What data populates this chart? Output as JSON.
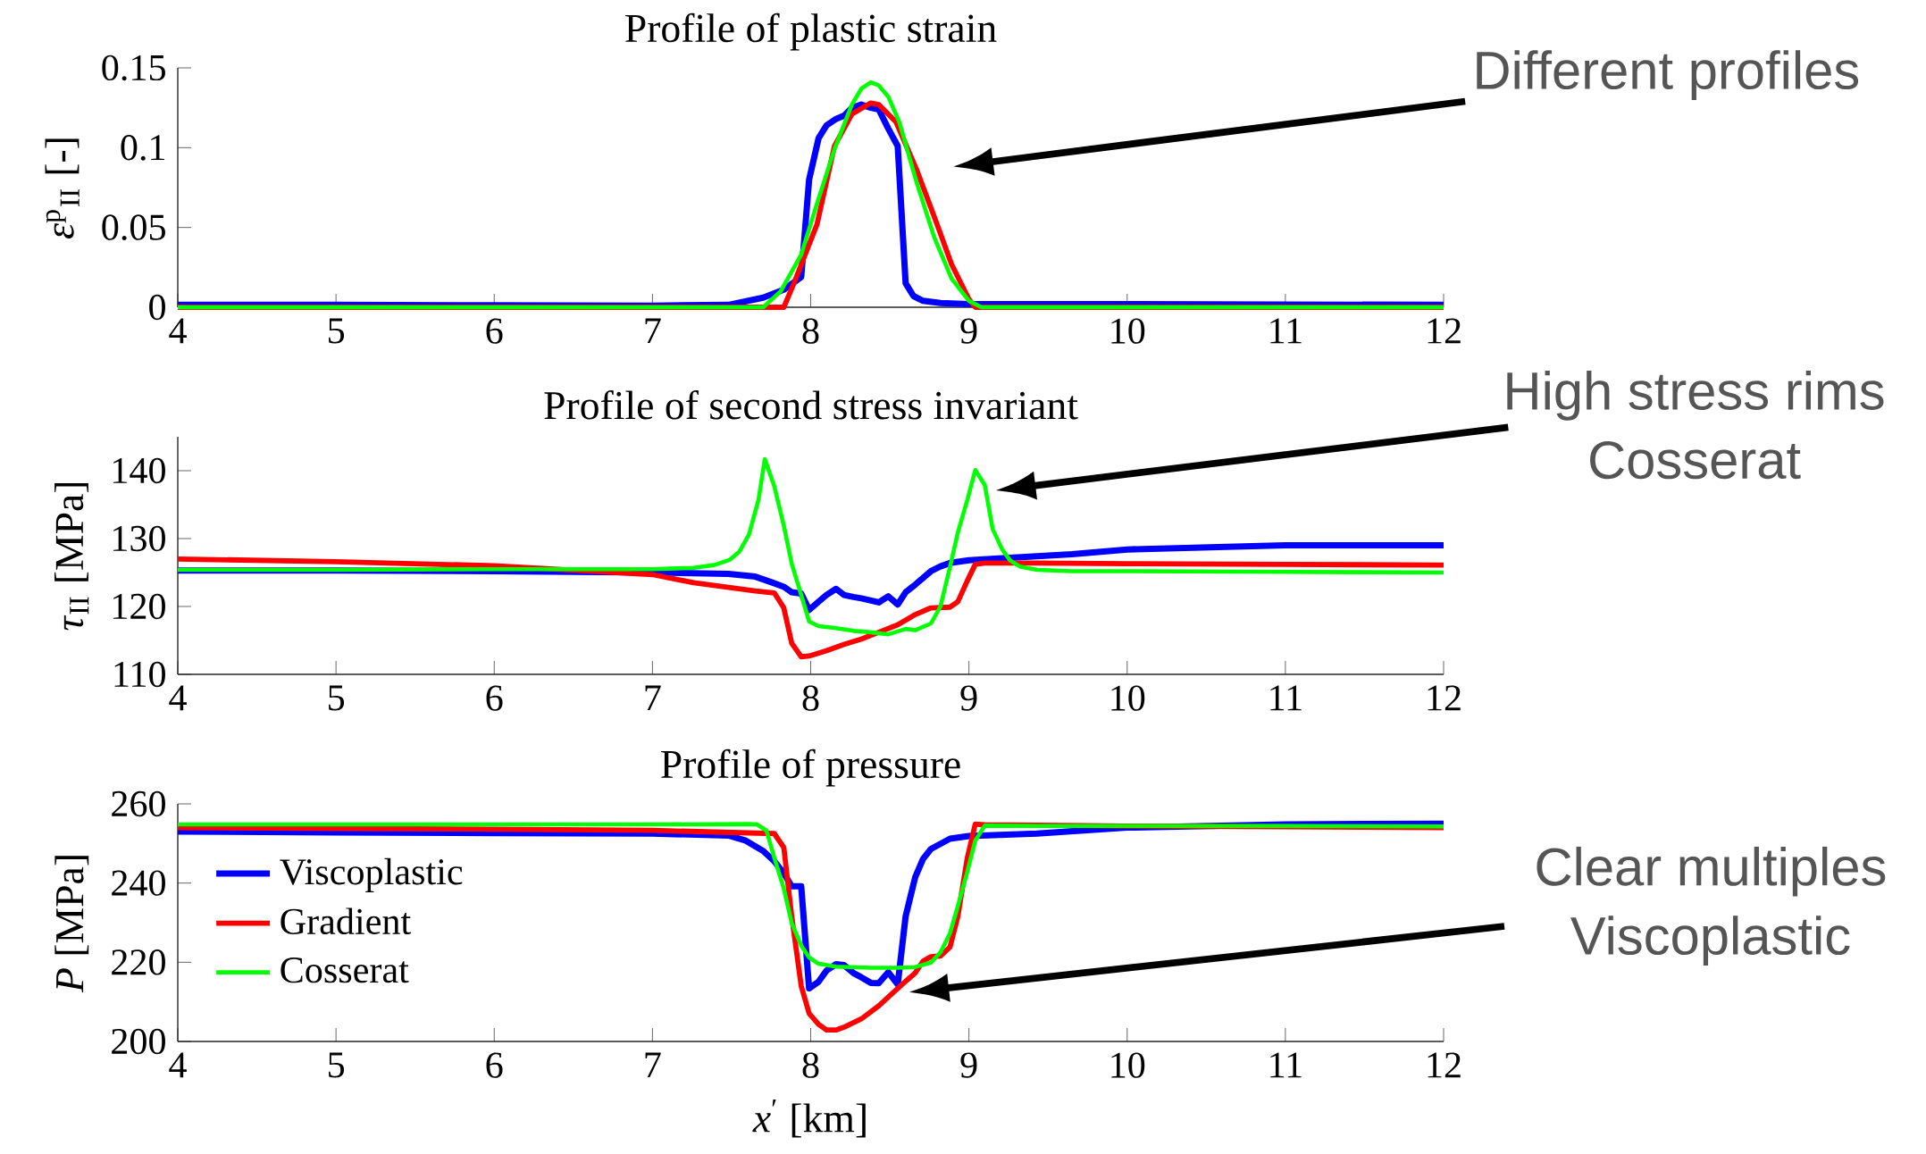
{
  "chart_data": [
    {
      "type": "line",
      "title": "Profile of plastic strain",
      "ylabel": "*ε*$^{p}$$_{II}$ [-]",
      "xlim": [
        4,
        12
      ],
      "xticks": [
        4,
        5,
        6,
        7,
        8,
        9,
        10,
        11,
        12
      ],
      "ylim": [
        0,
        0.15
      ],
      "yticks": [
        0,
        0.05,
        0.1,
        0.15
      ],
      "series": [
        {
          "color": "#0000ff",
          "x": [
            4,
            5,
            6,
            7,
            7.48,
            7.7,
            7.83,
            7.94,
            7.99,
            8.05,
            8.1,
            8.16,
            8.21,
            8.26,
            8.32,
            8.38,
            8.43,
            8.49,
            8.55,
            8.6,
            8.65,
            8.71,
            8.82,
            9,
            10,
            11,
            12
          ],
          "values": [
            0.0015,
            0.0015,
            0.0012,
            0.001,
            0.0015,
            0.006,
            0.011,
            0.019,
            0.08,
            0.106,
            0.114,
            0.118,
            0.12,
            0.125,
            0.127,
            0.125,
            0.124,
            0.112,
            0.101,
            0.015,
            0.007,
            0.004,
            0.0026,
            0.002,
            0.002,
            0.0017,
            0.0015
          ]
        },
        {
          "color": "#ff0000",
          "x": [
            4,
            7,
            7.83,
            7.89,
            8.04,
            8.15,
            8.26,
            8.38,
            8.43,
            8.54,
            8.67,
            8.78,
            8.89,
            9,
            9.04,
            10,
            12
          ],
          "values": [
            0,
            0,
            0,
            0.014,
            0.052,
            0.101,
            0.121,
            0.128,
            0.127,
            0.116,
            0.086,
            0.057,
            0.027,
            0.005,
            0,
            0,
            0
          ]
        },
        {
          "color": "#00ff00",
          "x": [
            4,
            7,
            7.7,
            7.81,
            7.94,
            8.04,
            8.15,
            8.26,
            8.32,
            8.38,
            8.43,
            8.49,
            8.56,
            8.67,
            8.78,
            8.89,
            9,
            9.08,
            10,
            12
          ],
          "values": [
            0,
            0,
            0,
            0.01,
            0.033,
            0.065,
            0.099,
            0.127,
            0.137,
            0.141,
            0.139,
            0.132,
            0.116,
            0.078,
            0.044,
            0.018,
            0.004,
            0,
            0,
            0
          ]
        }
      ],
      "annotations": [
        "Different profiles"
      ]
    },
    {
      "type": "line",
      "title": "Profile of second stress invariant",
      "ylabel": "*τ*$_{II}$ [MPa]",
      "xlim": [
        4,
        12
      ],
      "xticks": [
        4,
        5,
        6,
        7,
        8,
        9,
        10,
        11,
        12
      ],
      "ylim": [
        110,
        145
      ],
      "yticks": [
        110,
        120,
        130,
        140
      ],
      "series": [
        {
          "color": "#0000ff",
          "x": [
            4,
            5,
            6,
            7,
            7.48,
            7.65,
            7.76,
            7.83,
            7.88,
            7.94,
            7.99,
            8.05,
            8.1,
            8.16,
            8.21,
            8.27,
            8.32,
            8.43,
            8.49,
            8.55,
            8.6,
            8.66,
            8.76,
            8.82,
            8.88,
            9,
            9.21,
            9.65,
            10,
            11,
            12
          ],
          "values": [
            125.3,
            125.3,
            125.2,
            125.0,
            124.8,
            124.4,
            123.5,
            122.9,
            122.1,
            121.9,
            119.5,
            120.7,
            121.7,
            122.6,
            121.7,
            121.4,
            121.2,
            120.6,
            121.5,
            120.3,
            122.1,
            123.2,
            125.2,
            125.9,
            126.4,
            126.8,
            127.1,
            127.7,
            128.4,
            129.0,
            129.0
          ]
        },
        {
          "color": "#ff0000",
          "x": [
            4,
            5,
            6,
            7,
            7.26,
            7.65,
            7.77,
            7.83,
            7.88,
            7.94,
            7.99,
            8.1,
            8.21,
            8.32,
            8.43,
            8.55,
            8.66,
            8.76,
            8.88,
            8.93,
            8.99,
            9.04,
            9.1,
            9.43,
            10,
            11,
            12
          ],
          "values": [
            127.0,
            126.6,
            126.0,
            124.7,
            123.5,
            122.3,
            122.0,
            119.8,
            114.6,
            112.6,
            112.7,
            113.5,
            114.4,
            115.2,
            116.2,
            117.3,
            118.8,
            119.8,
            119.9,
            120.7,
            123.8,
            126.2,
            126.4,
            126.4,
            126.3,
            126.2,
            126.1
          ]
        },
        {
          "color": "#00ff00",
          "x": [
            4,
            5,
            6,
            7,
            7.26,
            7.39,
            7.49,
            7.55,
            7.61,
            7.67,
            7.71,
            7.77,
            7.83,
            7.88,
            7.94,
            7.99,
            8.05,
            8.16,
            8.27,
            8.38,
            8.49,
            8.6,
            8.66,
            8.76,
            8.82,
            8.88,
            8.93,
            8.99,
            9.04,
            9.1,
            9.15,
            9.21,
            9.26,
            9.32,
            9.43,
            9.65,
            10,
            11,
            12
          ],
          "values": [
            125.4,
            125.4,
            125.5,
            125.5,
            125.7,
            126.1,
            126.9,
            128.1,
            130.6,
            135.7,
            141.7,
            137.7,
            131.9,
            126.3,
            121.7,
            117.8,
            117.1,
            116.8,
            116.4,
            116.2,
            115.9,
            116.7,
            116.5,
            117.5,
            120.0,
            125.8,
            130.9,
            135.7,
            140.1,
            137.9,
            131.4,
            128.4,
            126.8,
            125.9,
            125.4,
            125.2,
            125.2,
            125.1,
            125.0
          ]
        }
      ],
      "annotations": [
        "High stress rims Cosserat"
      ]
    },
    {
      "type": "line",
      "title": "Profile of pressure",
      "xlabel": "*x*$^{′}$ [km]",
      "ylabel": "*P* [MPa]",
      "xlim": [
        4,
        12
      ],
      "xticks": [
        4,
        5,
        6,
        7,
        8,
        9,
        10,
        11,
        12
      ],
      "ylim": [
        200,
        260
      ],
      "yticks": [
        200,
        220,
        240,
        260
      ],
      "legend": "left",
      "series": [
        {
          "name": "Viscoplastic",
          "color": "#0000ff",
          "x": [
            4,
            5,
            6,
            7,
            7.48,
            7.59,
            7.7,
            7.77,
            7.83,
            7.88,
            7.94,
            7.99,
            8.05,
            8.1,
            8.16,
            8.21,
            8.27,
            8.32,
            8.38,
            8.43,
            8.49,
            8.55,
            8.6,
            8.66,
            8.71,
            8.76,
            8.88,
            9,
            9.43,
            10,
            11,
            12
          ],
          "values": [
            253.0,
            252.8,
            252.6,
            252.5,
            252.0,
            250.7,
            248.1,
            245.5,
            242.5,
            239.2,
            239.2,
            213.4,
            215.1,
            217.9,
            219.5,
            219.3,
            217.3,
            216.2,
            214.8,
            214.7,
            217.5,
            214.4,
            231.6,
            241.4,
            246.1,
            248.6,
            251.2,
            251.9,
            252.5,
            254.0,
            254.8,
            255.0
          ]
        },
        {
          "name": "Gradient",
          "color": "#ff0000",
          "x": [
            4,
            5,
            6,
            7,
            7.77,
            7.83,
            7.88,
            7.94,
            7.99,
            8.05,
            8.1,
            8.16,
            8.21,
            8.32,
            8.43,
            8.55,
            8.66,
            8.71,
            8.76,
            8.82,
            8.88,
            8.93,
            8.99,
            9.04,
            9.1,
            9.43,
            10,
            11,
            12
          ],
          "values": [
            254.0,
            253.8,
            253.6,
            253.3,
            252.5,
            249.0,
            231.6,
            214.0,
            207.1,
            204.3,
            202.9,
            202.9,
            203.6,
            205.7,
            209.0,
            213.4,
            217.3,
            220.3,
            221.4,
            221.6,
            223.8,
            231.6,
            246.4,
            254.9,
            254.7,
            254.6,
            254.4,
            254.2,
            254.0
          ]
        },
        {
          "name": "Cosserat",
          "color": "#00ff00",
          "x": [
            4,
            5,
            6,
            7,
            7.61,
            7.66,
            7.72,
            7.77,
            7.83,
            7.88,
            7.94,
            7.99,
            8.05,
            8.16,
            8.38,
            8.55,
            8.66,
            8.76,
            8.82,
            8.88,
            8.93,
            8.99,
            9.04,
            9.1,
            9.43,
            10,
            11,
            12
          ],
          "values": [
            254.8,
            254.8,
            254.8,
            254.8,
            254.9,
            254.8,
            253.3,
            246.4,
            238.6,
            229.9,
            224.2,
            221.2,
            219.6,
            218.9,
            218.6,
            218.6,
            218.8,
            219.9,
            222.5,
            227.3,
            234.2,
            242.9,
            250.7,
            254.5,
            254.4,
            254.4,
            254.4,
            254.3
          ]
        }
      ],
      "annotations": [
        "Clear multiples Viscoplastic"
      ]
    }
  ]
}
